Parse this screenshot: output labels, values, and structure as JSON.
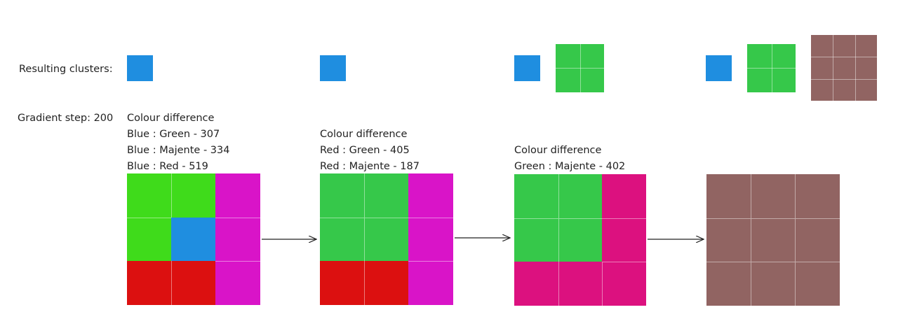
{
  "labels": {
    "resulting_clusters": "Resulting clusters:",
    "gradient_step": "Gradient step: 200"
  },
  "colors": {
    "blue": "#1f8ee0",
    "green_bright": "#3fdb1b",
    "green": "#36c84a",
    "magenta": "#d914c8",
    "red": "#dc1010",
    "pink": "#dc117f",
    "brown": "#916462",
    "cell_divider": "#ffffff"
  },
  "steps": [
    {
      "heading": "Colour difference",
      "lines": [
        "Blue : Green - 307",
        "Blue : Majente - 334",
        "Blue : Red - 519"
      ],
      "grid": [
        [
          "green_bright",
          "green_bright",
          "magenta"
        ],
        [
          "green_bright",
          "blue",
          "magenta"
        ],
        [
          "red",
          "red",
          "magenta"
        ]
      ],
      "clusters": [
        {
          "color": "blue",
          "size": 1
        }
      ]
    },
    {
      "heading": "Colour difference",
      "lines": [
        "Red : Green - 405",
        "Red : Majente - 187"
      ],
      "grid": [
        [
          "green",
          "green",
          "magenta"
        ],
        [
          "green",
          "green",
          "magenta"
        ],
        [
          "red",
          "red",
          "magenta"
        ]
      ],
      "clusters": [
        {
          "color": "blue",
          "size": 1
        }
      ]
    },
    {
      "heading": "Colour difference",
      "lines": [
        "Green : Majente - 402"
      ],
      "grid": [
        [
          "green",
          "green",
          "pink"
        ],
        [
          "green",
          "green",
          "pink"
        ],
        [
          "pink",
          "pink",
          "pink"
        ]
      ],
      "clusters": [
        {
          "color": "blue",
          "size": 1
        },
        {
          "color": "green",
          "size": 2
        }
      ]
    },
    {
      "heading": "",
      "lines": [],
      "grid": [
        [
          "brown",
          "brown",
          "brown"
        ],
        [
          "brown",
          "brown",
          "brown"
        ],
        [
          "brown",
          "brown",
          "brown"
        ]
      ],
      "clusters": [
        {
          "color": "blue",
          "size": 1
        },
        {
          "color": "green",
          "size": 2
        },
        {
          "color": "brown",
          "size": 3
        }
      ]
    }
  ]
}
